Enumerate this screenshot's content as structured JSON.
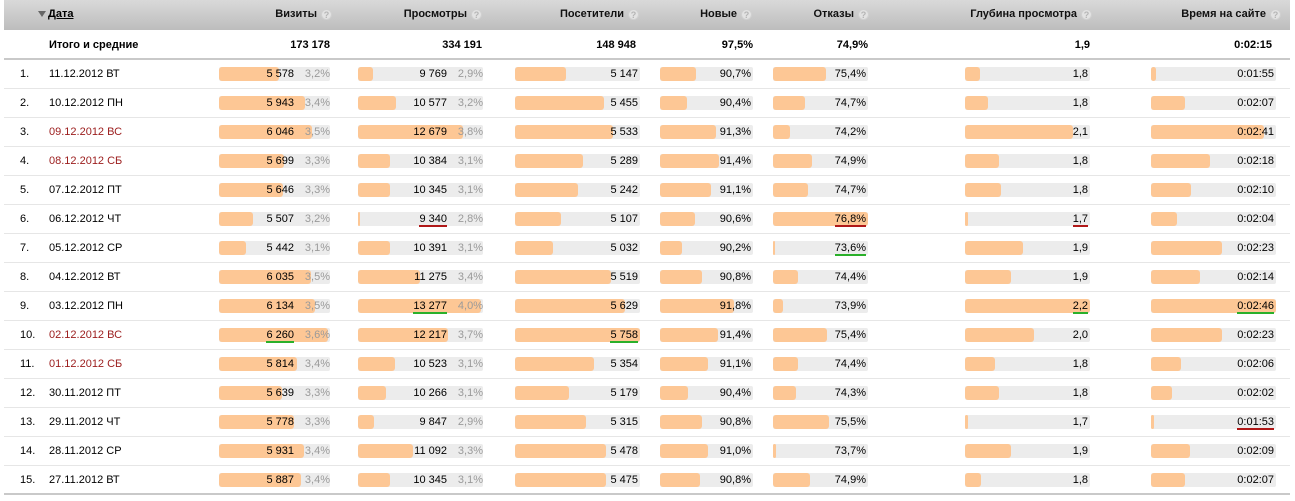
{
  "header": {
    "date": "Дата",
    "visits": "Визиты",
    "views": "Просмотры",
    "visitors": "Посетители",
    "new": "Новые",
    "bounces": "Отказы",
    "depth": "Глубина просмотра",
    "time": "Время на сайте",
    "help_glyph": "?"
  },
  "totals": {
    "label": "Итого и средние",
    "visits": "173 178",
    "views": "334 191",
    "visitors": "148 948",
    "new": "97,5%",
    "bounces": "74,9%",
    "depth": "1,9",
    "time": "0:02:15"
  },
  "colors": {
    "bar_fill": "#fdc795",
    "bar_track": "#ececec",
    "holiday": "#9b1c1c",
    "best": "#2ab02a",
    "worst": "#b01818"
  },
  "rows": [
    {
      "n": "1.",
      "date": "11.12.2012 ВТ",
      "holiday": false,
      "visits": "5 578",
      "visits_pct": "3,2%",
      "visits_fill": 0.55,
      "views": "9 769",
      "views_pct": "2,9%",
      "views_fill": 0.12,
      "visitors": "5 147",
      "visitors_fill": 0.41,
      "new": "90,7%",
      "new_fill": 0.39,
      "bounces": "75,4%",
      "bounces_fill": 0.56,
      "depth": "1,8",
      "depth_fill": 0.12,
      "time": "0:01:55",
      "time_fill": 0.04
    },
    {
      "n": "2.",
      "date": "10.12.2012 ПН",
      "holiday": false,
      "visits": "5 943",
      "visits_pct": "3,4%",
      "visits_fill": 0.79,
      "views": "10 577",
      "views_pct": "3,2%",
      "views_fill": 0.31,
      "visitors": "5 455",
      "visitors_fill": 0.71,
      "new": "90,4%",
      "new_fill": 0.29,
      "bounces": "74,7%",
      "bounces_fill": 0.34,
      "depth": "1,8",
      "depth_fill": 0.18,
      "time": "0:02:07",
      "time_fill": 0.27
    },
    {
      "n": "3.",
      "date": "09.12.2012 ВС",
      "holiday": true,
      "visits": "6 046",
      "visits_pct": "3,5%",
      "visits_fill": 0.85,
      "views": "12 679",
      "views_pct": "3,8%",
      "views_fill": 0.85,
      "visitors": "5 533",
      "visitors_fill": 0.78,
      "new": "91,3%",
      "new_fill": 0.6,
      "bounces": "74,2%",
      "bounces_fill": 0.18,
      "depth": "2,1",
      "depth_fill": 0.86,
      "time": "0:02:41",
      "time_fill": 0.9
    },
    {
      "n": "4.",
      "date": "08.12.2012 СБ",
      "holiday": true,
      "visits": "5 699",
      "visits_pct": "3,3%",
      "visits_fill": 0.6,
      "views": "10 384",
      "views_pct": "3,1%",
      "views_fill": 0.26,
      "visitors": "5 289",
      "visitors_fill": 0.54,
      "new": "91,4%",
      "new_fill": 0.63,
      "bounces": "74,9%",
      "bounces_fill": 0.41,
      "depth": "1,8",
      "depth_fill": 0.27,
      "time": "0:02:18",
      "time_fill": 0.47
    },
    {
      "n": "5.",
      "date": "07.12.2012 ПТ",
      "holiday": false,
      "visits": "5 646",
      "visits_pct": "3,3%",
      "visits_fill": 0.59,
      "views": "10 345",
      "views_pct": "3,1%",
      "views_fill": 0.26,
      "visitors": "5 242",
      "visitors_fill": 0.5,
      "new": "91,1%",
      "new_fill": 0.55,
      "bounces": "74,7%",
      "bounces_fill": 0.37,
      "depth": "1,8",
      "depth_fill": 0.29,
      "time": "0:02:10",
      "time_fill": 0.32
    },
    {
      "n": "6.",
      "date": "06.12.2012 ЧТ",
      "holiday": false,
      "visits": "5 507",
      "visits_pct": "3,2%",
      "visits_fill": 0.31,
      "views": "9 340",
      "views_pct": "2,8%",
      "views_fill": 0.02,
      "views_mark": "worst",
      "visitors": "5 107",
      "visitors_fill": 0.37,
      "new": "90,6%",
      "new_fill": 0.38,
      "bounces": "76,8%",
      "bounces_fill": 1.0,
      "bounces_mark": "worst",
      "depth": "1,7",
      "depth_fill": 0.02,
      "depth_mark": "worst",
      "time": "0:02:04",
      "time_fill": 0.21
    },
    {
      "n": "7.",
      "date": "05.12.2012 СР",
      "holiday": false,
      "visits": "5 442",
      "visits_pct": "3,1%",
      "visits_fill": 0.25,
      "views": "10 391",
      "views_pct": "3,1%",
      "views_fill": 0.26,
      "visitors": "5 032",
      "visitors_fill": 0.3,
      "new": "90,2%",
      "new_fill": 0.24,
      "bounces": "73,6%",
      "bounces_fill": 0.02,
      "bounces_mark": "best",
      "depth": "1,9",
      "depth_fill": 0.46,
      "time": "0:02:23",
      "time_fill": 0.57
    },
    {
      "n": "8.",
      "date": "04.12.2012 ВТ",
      "holiday": false,
      "visits": "6 035",
      "visits_pct": "3,5%",
      "visits_fill": 0.84,
      "views": "11 275",
      "views_pct": "3,4%",
      "views_fill": 0.5,
      "visitors": "5 519",
      "visitors_fill": 0.77,
      "new": "90,8%",
      "new_fill": 0.45,
      "bounces": "74,4%",
      "bounces_fill": 0.26,
      "depth": "1,9",
      "depth_fill": 0.37,
      "time": "0:02:14",
      "time_fill": 0.39
    },
    {
      "n": "9.",
      "date": "03.12.2012 ПН",
      "holiday": false,
      "visits": "6 134",
      "visits_pct": "3,5%",
      "visits_fill": 0.88,
      "views": "13 277",
      "views_pct": "4,0%",
      "views_fill": 1.0,
      "views_mark": "best",
      "visitors": "5 629",
      "visitors_fill": 0.88,
      "new": "91,8%",
      "new_fill": 0.8,
      "bounces": "73,9%",
      "bounces_fill": 0.11,
      "depth": "2,2",
      "depth_fill": 1.0,
      "depth_mark": "best",
      "time": "0:02:46",
      "time_fill": 1.0,
      "time_mark": "best"
    },
    {
      "n": "10.",
      "date": "02.12.2012 ВС",
      "holiday": true,
      "visits": "6 260",
      "visits_pct": "3,6%",
      "visits_fill": 1.0,
      "visits_mark": "best",
      "views": "12 217",
      "views_pct": "3,7%",
      "views_fill": 0.73,
      "visitors": "5 758",
      "visitors_fill": 1.0,
      "visitors_mark": "best",
      "new": "91,4%",
      "new_fill": 0.62,
      "bounces": "75,4%",
      "bounces_fill": 0.57,
      "depth": "2,0",
      "depth_fill": 0.55,
      "time": "0:02:23",
      "time_fill": 0.57
    },
    {
      "n": "11.",
      "date": "01.12.2012 СБ",
      "holiday": true,
      "visits": "5 814",
      "visits_pct": "3,4%",
      "visits_fill": 0.72,
      "views": "10 523",
      "views_pct": "3,1%",
      "views_fill": 0.3,
      "visitors": "5 354",
      "visitors_fill": 0.63,
      "new": "91,1%",
      "new_fill": 0.52,
      "bounces": "74,4%",
      "bounces_fill": 0.26,
      "depth": "1,8",
      "depth_fill": 0.24,
      "time": "0:02:06",
      "time_fill": 0.24
    },
    {
      "n": "12.",
      "date": "30.11.2012 ПТ",
      "holiday": false,
      "visits": "5 639",
      "visits_pct": "3,3%",
      "visits_fill": 0.58,
      "views": "10 266",
      "views_pct": "3,1%",
      "views_fill": 0.23,
      "visitors": "5 179",
      "visitors_fill": 0.43,
      "new": "90,4%",
      "new_fill": 0.3,
      "bounces": "74,3%",
      "bounces_fill": 0.24,
      "depth": "1,8",
      "depth_fill": 0.27,
      "time": "0:02:02",
      "time_fill": 0.17
    },
    {
      "n": "13.",
      "date": "29.11.2012 ЧТ",
      "holiday": false,
      "visits": "5 778",
      "visits_pct": "3,3%",
      "visits_fill": 0.69,
      "views": "9 847",
      "views_pct": "2,9%",
      "views_fill": 0.13,
      "visitors": "5 315",
      "visitors_fill": 0.57,
      "new": "90,8%",
      "new_fill": 0.45,
      "bounces": "75,5%",
      "bounces_fill": 0.59,
      "depth": "1,7",
      "depth_fill": 0.02,
      "time": "0:01:53",
      "time_fill": 0.02,
      "time_mark": "worst"
    },
    {
      "n": "14.",
      "date": "28.11.2012 СР",
      "holiday": false,
      "visits": "5 931",
      "visits_pct": "3,4%",
      "visits_fill": 0.78,
      "views": "11 092",
      "views_pct": "3,3%",
      "views_fill": 0.45,
      "visitors": "5 478",
      "visitors_fill": 0.73,
      "new": "91,0%",
      "new_fill": 0.52,
      "bounces": "73,7%",
      "bounces_fill": 0.03,
      "depth": "1,9",
      "depth_fill": 0.37,
      "time": "0:02:09",
      "time_fill": 0.31
    },
    {
      "n": "15.",
      "date": "27.11.2012 ВТ",
      "holiday": false,
      "visits": "5 887",
      "visits_pct": "3,4%",
      "visits_fill": 0.75,
      "views": "10 345",
      "views_pct": "3,1%",
      "views_fill": 0.26,
      "visitors": "5 475",
      "visitors_fill": 0.73,
      "new": "90,8%",
      "new_fill": 0.43,
      "bounces": "74,9%",
      "bounces_fill": 0.39,
      "depth": "1,8",
      "depth_fill": 0.13,
      "time": "0:02:07",
      "time_fill": 0.27
    }
  ]
}
